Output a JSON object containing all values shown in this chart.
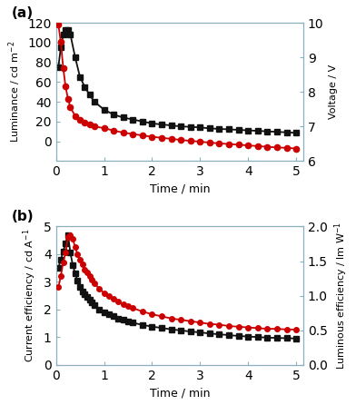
{
  "panel_a": {
    "luminance_time": [
      0.05,
      0.1,
      0.15,
      0.2,
      0.25,
      0.3,
      0.4,
      0.5,
      0.6,
      0.7,
      0.8,
      1.0,
      1.2,
      1.4,
      1.6,
      1.8,
      2.0,
      2.2,
      2.4,
      2.6,
      2.8,
      3.0,
      3.2,
      3.4,
      3.6,
      3.8,
      4.0,
      4.2,
      4.4,
      4.6,
      4.8,
      5.0
    ],
    "luminance_vals": [
      75,
      95,
      108,
      113,
      113,
      108,
      85,
      65,
      55,
      47,
      40,
      32,
      27,
      24,
      22,
      20,
      18,
      17,
      16,
      15,
      14.5,
      14,
      13,
      12.5,
      12,
      11.5,
      11,
      10.5,
      10,
      9.5,
      9,
      8.5
    ],
    "voltage_time": [
      0.05,
      0.1,
      0.15,
      0.2,
      0.25,
      0.3,
      0.4,
      0.5,
      0.6,
      0.7,
      0.8,
      1.0,
      1.2,
      1.4,
      1.6,
      1.8,
      2.0,
      2.2,
      2.4,
      2.6,
      2.8,
      3.0,
      3.2,
      3.4,
      3.6,
      3.8,
      4.0,
      4.2,
      4.4,
      4.6,
      4.8,
      5.0
    ],
    "voltage_vals": [
      9.95,
      9.45,
      8.7,
      8.15,
      7.8,
      7.55,
      7.3,
      7.2,
      7.1,
      7.05,
      7.0,
      6.95,
      6.88,
      6.82,
      6.78,
      6.74,
      6.7,
      6.67,
      6.64,
      6.61,
      6.58,
      6.56,
      6.53,
      6.51,
      6.49,
      6.47,
      6.45,
      6.43,
      6.41,
      6.39,
      6.38,
      6.36
    ],
    "ylabel_left": "Luminance / cd m$^{-2}$",
    "ylabel_right": "Voltage / V",
    "xlabel": "Time / min",
    "ylim_left": [
      -20,
      120
    ],
    "ylim_right": [
      6,
      10
    ],
    "yticks_left": [
      0,
      20,
      40,
      60,
      80,
      100,
      120
    ],
    "yticks_right": [
      6,
      7,
      8,
      9,
      10
    ],
    "xlim": [
      0,
      5.15
    ],
    "xticks": [
      0,
      1,
      2,
      3,
      4,
      5
    ],
    "label": "(a)"
  },
  "panel_b": {
    "curr_eff_time": [
      0.05,
      0.1,
      0.15,
      0.2,
      0.25,
      0.3,
      0.35,
      0.4,
      0.45,
      0.5,
      0.55,
      0.6,
      0.65,
      0.7,
      0.75,
      0.8,
      0.9,
      1.0,
      1.1,
      1.2,
      1.3,
      1.4,
      1.5,
      1.6,
      1.8,
      2.0,
      2.2,
      2.4,
      2.6,
      2.8,
      3.0,
      3.2,
      3.4,
      3.6,
      3.8,
      4.0,
      4.2,
      4.4,
      4.6,
      4.8,
      5.0
    ],
    "curr_eff_vals": [
      3.5,
      3.8,
      4.1,
      4.4,
      4.7,
      4.05,
      3.6,
      3.3,
      3.05,
      2.8,
      2.65,
      2.55,
      2.45,
      2.35,
      2.25,
      2.15,
      2.0,
      1.9,
      1.82,
      1.75,
      1.68,
      1.62,
      1.57,
      1.52,
      1.44,
      1.38,
      1.33,
      1.28,
      1.24,
      1.2,
      1.17,
      1.13,
      1.1,
      1.07,
      1.04,
      1.02,
      1.0,
      0.98,
      0.97,
      0.96,
      0.95
    ],
    "lum_eff_time": [
      0.05,
      0.1,
      0.15,
      0.2,
      0.25,
      0.3,
      0.35,
      0.4,
      0.45,
      0.5,
      0.55,
      0.6,
      0.65,
      0.7,
      0.75,
      0.8,
      0.9,
      1.0,
      1.1,
      1.2,
      1.3,
      1.4,
      1.5,
      1.6,
      1.8,
      2.0,
      2.2,
      2.4,
      2.6,
      2.8,
      3.0,
      3.2,
      3.4,
      3.6,
      3.8,
      4.0,
      4.2,
      4.4,
      4.6,
      4.8,
      5.0
    ],
    "lum_eff_vals": [
      1.12,
      1.28,
      1.48,
      1.62,
      1.85,
      1.88,
      1.82,
      1.7,
      1.6,
      1.52,
      1.45,
      1.38,
      1.33,
      1.28,
      1.23,
      1.18,
      1.1,
      1.04,
      0.99,
      0.95,
      0.91,
      0.88,
      0.85,
      0.82,
      0.77,
      0.73,
      0.7,
      0.67,
      0.65,
      0.63,
      0.61,
      0.59,
      0.58,
      0.56,
      0.55,
      0.54,
      0.53,
      0.52,
      0.52,
      0.51,
      0.51
    ],
    "ylabel_left": "Current efficiency / cd A$^{-1}$",
    "ylabel_right": "Luminous efficiency / lm W$^{-1}$",
    "xlabel": "Time / min",
    "ylim_left": [
      0,
      5
    ],
    "ylim_right": [
      0.0,
      2.0
    ],
    "yticks_left": [
      0,
      1,
      2,
      3,
      4,
      5
    ],
    "yticks_right": [
      0.0,
      0.5,
      1.0,
      1.5,
      2.0
    ],
    "xlim": [
      0,
      5.15
    ],
    "xticks": [
      0,
      1,
      2,
      3,
      4,
      5
    ],
    "label": "(b)"
  },
  "black_color": "#111111",
  "red_color": "#cc0000",
  "marker_black": "s",
  "marker_red": "o",
  "marker_size_a": 4.5,
  "marker_size_b": 4.0,
  "linewidth": 1.3,
  "spine_color": "#8ab0be",
  "label_fontsize": 11,
  "axis_fontsize": 8,
  "xlabel_fontsize": 9,
  "fig_facecolor": "#ffffff"
}
